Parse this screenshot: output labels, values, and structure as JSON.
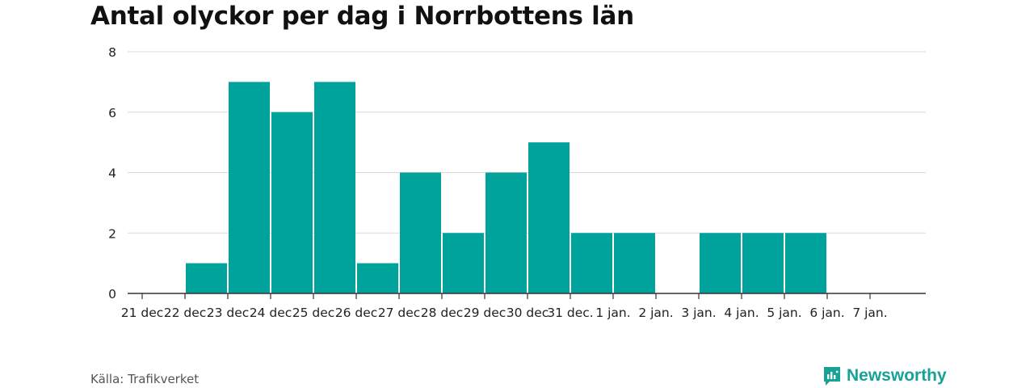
{
  "title": "Antal olyckor per dag i Norrbottens län",
  "source": "Källa: Trafikverket",
  "brand": {
    "name": "Newsworthy",
    "icon": "newsworthy-logo-icon"
  },
  "colors": {
    "bar": "#00a39b",
    "grid": "#d9d9d9",
    "axis": "#333333",
    "brand": "#17a296"
  },
  "chart_data": {
    "type": "bar",
    "categories": [
      "21 dec",
      "22 dec",
      "23 dec",
      "24 dec",
      "25 dec",
      "26 dec",
      "27 dec",
      "28 dec",
      "29 dec",
      "30 dec",
      "31 dec.",
      "1 jan.",
      "2 jan.",
      "3 jan.",
      "4 jan.",
      "5 jan.",
      "6 jan.",
      "7 jan."
    ],
    "values": [
      0,
      1,
      7,
      6,
      7,
      1,
      4,
      2,
      4,
      5,
      2,
      2,
      0,
      2,
      2,
      2,
      0,
      0
    ],
    "y_ticks": [
      0,
      2,
      4,
      6,
      8
    ],
    "ylim": [
      0,
      8
    ],
    "grid": true,
    "title": "Antal olyckor per dag i Norrbottens län",
    "xlabel": "",
    "ylabel": ""
  }
}
